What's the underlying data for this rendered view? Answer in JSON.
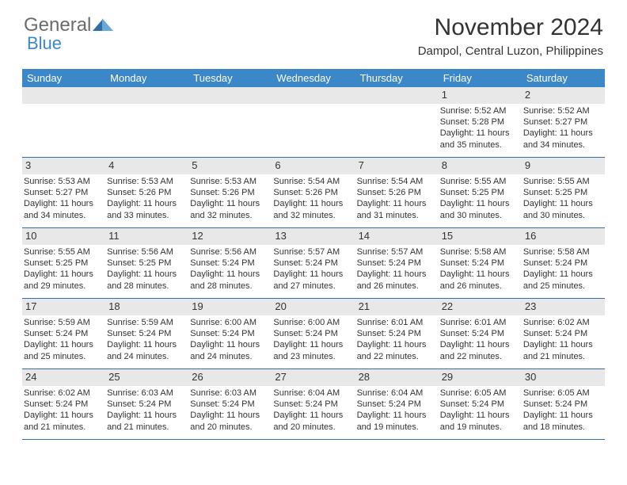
{
  "logo": {
    "line1": "General",
    "line2": "Blue"
  },
  "title": "November 2024",
  "subtitle": "Dampol, Central Luzon, Philippines",
  "colors": {
    "header_bg": "#3b87c8",
    "header_text": "#ffffff",
    "daynum_bg": "#e8e8e8",
    "week_border": "#3b6ea0",
    "body_text": "#333333",
    "logo_gray": "#6b6b6b",
    "logo_blue": "#3b87c8",
    "background": "#ffffff"
  },
  "day_headers": [
    "Sunday",
    "Monday",
    "Tuesday",
    "Wednesday",
    "Thursday",
    "Friday",
    "Saturday"
  ],
  "weeks": [
    [
      {
        "num": "",
        "sunrise": "",
        "sunset": "",
        "daylight": ""
      },
      {
        "num": "",
        "sunrise": "",
        "sunset": "",
        "daylight": ""
      },
      {
        "num": "",
        "sunrise": "",
        "sunset": "",
        "daylight": ""
      },
      {
        "num": "",
        "sunrise": "",
        "sunset": "",
        "daylight": ""
      },
      {
        "num": "",
        "sunrise": "",
        "sunset": "",
        "daylight": ""
      },
      {
        "num": "1",
        "sunrise": "Sunrise: 5:52 AM",
        "sunset": "Sunset: 5:28 PM",
        "daylight": "Daylight: 11 hours and 35 minutes."
      },
      {
        "num": "2",
        "sunrise": "Sunrise: 5:52 AM",
        "sunset": "Sunset: 5:27 PM",
        "daylight": "Daylight: 11 hours and 34 minutes."
      }
    ],
    [
      {
        "num": "3",
        "sunrise": "Sunrise: 5:53 AM",
        "sunset": "Sunset: 5:27 PM",
        "daylight": "Daylight: 11 hours and 34 minutes."
      },
      {
        "num": "4",
        "sunrise": "Sunrise: 5:53 AM",
        "sunset": "Sunset: 5:26 PM",
        "daylight": "Daylight: 11 hours and 33 minutes."
      },
      {
        "num": "5",
        "sunrise": "Sunrise: 5:53 AM",
        "sunset": "Sunset: 5:26 PM",
        "daylight": "Daylight: 11 hours and 32 minutes."
      },
      {
        "num": "6",
        "sunrise": "Sunrise: 5:54 AM",
        "sunset": "Sunset: 5:26 PM",
        "daylight": "Daylight: 11 hours and 32 minutes."
      },
      {
        "num": "7",
        "sunrise": "Sunrise: 5:54 AM",
        "sunset": "Sunset: 5:26 PM",
        "daylight": "Daylight: 11 hours and 31 minutes."
      },
      {
        "num": "8",
        "sunrise": "Sunrise: 5:55 AM",
        "sunset": "Sunset: 5:25 PM",
        "daylight": "Daylight: 11 hours and 30 minutes."
      },
      {
        "num": "9",
        "sunrise": "Sunrise: 5:55 AM",
        "sunset": "Sunset: 5:25 PM",
        "daylight": "Daylight: 11 hours and 30 minutes."
      }
    ],
    [
      {
        "num": "10",
        "sunrise": "Sunrise: 5:55 AM",
        "sunset": "Sunset: 5:25 PM",
        "daylight": "Daylight: 11 hours and 29 minutes."
      },
      {
        "num": "11",
        "sunrise": "Sunrise: 5:56 AM",
        "sunset": "Sunset: 5:25 PM",
        "daylight": "Daylight: 11 hours and 28 minutes."
      },
      {
        "num": "12",
        "sunrise": "Sunrise: 5:56 AM",
        "sunset": "Sunset: 5:24 PM",
        "daylight": "Daylight: 11 hours and 28 minutes."
      },
      {
        "num": "13",
        "sunrise": "Sunrise: 5:57 AM",
        "sunset": "Sunset: 5:24 PM",
        "daylight": "Daylight: 11 hours and 27 minutes."
      },
      {
        "num": "14",
        "sunrise": "Sunrise: 5:57 AM",
        "sunset": "Sunset: 5:24 PM",
        "daylight": "Daylight: 11 hours and 26 minutes."
      },
      {
        "num": "15",
        "sunrise": "Sunrise: 5:58 AM",
        "sunset": "Sunset: 5:24 PM",
        "daylight": "Daylight: 11 hours and 26 minutes."
      },
      {
        "num": "16",
        "sunrise": "Sunrise: 5:58 AM",
        "sunset": "Sunset: 5:24 PM",
        "daylight": "Daylight: 11 hours and 25 minutes."
      }
    ],
    [
      {
        "num": "17",
        "sunrise": "Sunrise: 5:59 AM",
        "sunset": "Sunset: 5:24 PM",
        "daylight": "Daylight: 11 hours and 25 minutes."
      },
      {
        "num": "18",
        "sunrise": "Sunrise: 5:59 AM",
        "sunset": "Sunset: 5:24 PM",
        "daylight": "Daylight: 11 hours and 24 minutes."
      },
      {
        "num": "19",
        "sunrise": "Sunrise: 6:00 AM",
        "sunset": "Sunset: 5:24 PM",
        "daylight": "Daylight: 11 hours and 24 minutes."
      },
      {
        "num": "20",
        "sunrise": "Sunrise: 6:00 AM",
        "sunset": "Sunset: 5:24 PM",
        "daylight": "Daylight: 11 hours and 23 minutes."
      },
      {
        "num": "21",
        "sunrise": "Sunrise: 6:01 AM",
        "sunset": "Sunset: 5:24 PM",
        "daylight": "Daylight: 11 hours and 22 minutes."
      },
      {
        "num": "22",
        "sunrise": "Sunrise: 6:01 AM",
        "sunset": "Sunset: 5:24 PM",
        "daylight": "Daylight: 11 hours and 22 minutes."
      },
      {
        "num": "23",
        "sunrise": "Sunrise: 6:02 AM",
        "sunset": "Sunset: 5:24 PM",
        "daylight": "Daylight: 11 hours and 21 minutes."
      }
    ],
    [
      {
        "num": "24",
        "sunrise": "Sunrise: 6:02 AM",
        "sunset": "Sunset: 5:24 PM",
        "daylight": "Daylight: 11 hours and 21 minutes."
      },
      {
        "num": "25",
        "sunrise": "Sunrise: 6:03 AM",
        "sunset": "Sunset: 5:24 PM",
        "daylight": "Daylight: 11 hours and 21 minutes."
      },
      {
        "num": "26",
        "sunrise": "Sunrise: 6:03 AM",
        "sunset": "Sunset: 5:24 PM",
        "daylight": "Daylight: 11 hours and 20 minutes."
      },
      {
        "num": "27",
        "sunrise": "Sunrise: 6:04 AM",
        "sunset": "Sunset: 5:24 PM",
        "daylight": "Daylight: 11 hours and 20 minutes."
      },
      {
        "num": "28",
        "sunrise": "Sunrise: 6:04 AM",
        "sunset": "Sunset: 5:24 PM",
        "daylight": "Daylight: 11 hours and 19 minutes."
      },
      {
        "num": "29",
        "sunrise": "Sunrise: 6:05 AM",
        "sunset": "Sunset: 5:24 PM",
        "daylight": "Daylight: 11 hours and 19 minutes."
      },
      {
        "num": "30",
        "sunrise": "Sunrise: 6:05 AM",
        "sunset": "Sunset: 5:24 PM",
        "daylight": "Daylight: 11 hours and 18 minutes."
      }
    ]
  ]
}
